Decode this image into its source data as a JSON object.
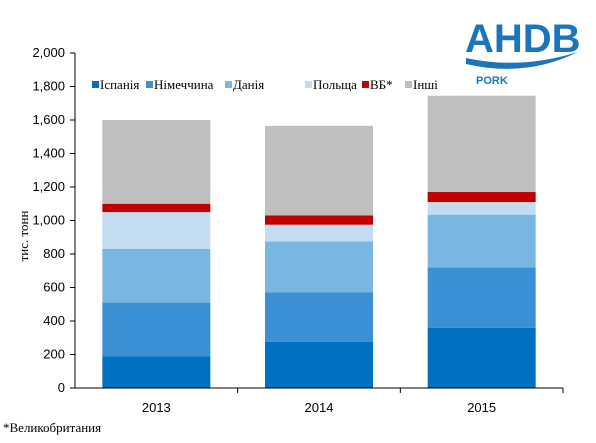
{
  "logo": {
    "word": "AHDB",
    "sub": "PORK",
    "color": "#1b75bb"
  },
  "footnote": "*Великобритания",
  "chart_data": {
    "type": "bar",
    "stacked": true,
    "categories": [
      "2013",
      "2014",
      "2015"
    ],
    "series": [
      {
        "name": "Іспанія",
        "color": "#0070c0",
        "values": [
          190,
          275,
          360
        ]
      },
      {
        "name": "Німеччина",
        "color": "#3b8fd4",
        "values": [
          320,
          295,
          360
        ]
      },
      {
        "name": "Данія",
        "color": "#7ab6e2",
        "values": [
          320,
          305,
          315
        ]
      },
      {
        "name": "Польща",
        "color": "#c3dcf1",
        "values": [
          220,
          100,
          75
        ]
      },
      {
        "name": "ВБ*",
        "color": "#c00000",
        "values": [
          50,
          55,
          60
        ]
      },
      {
        "name": "Інші",
        "color": "#bfbfbf",
        "values": [
          500,
          535,
          575
        ]
      }
    ],
    "ylabel": "тис. тонн",
    "xlabel": "",
    "ylim": [
      0,
      2000
    ],
    "yticks": [
      "0",
      "200",
      "400",
      "600",
      "800",
      "1,000",
      "1,200",
      "1,400",
      "1,600",
      "1,800",
      "2,000"
    ],
    "grid": false,
    "legend_position": "top"
  }
}
